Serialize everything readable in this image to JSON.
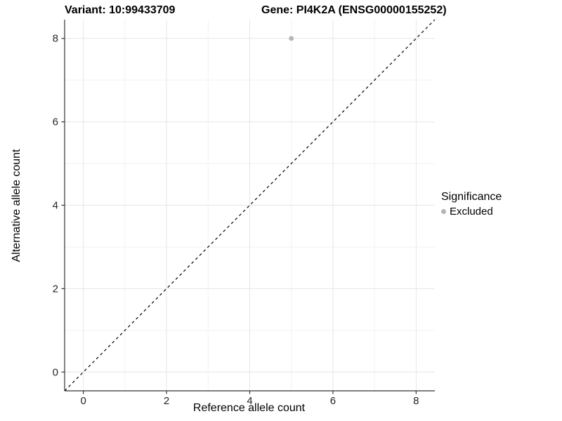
{
  "titles": {
    "variant": "Variant: 10:99433709",
    "gene": "Gene: PI4K2A (ENSG00000155252)"
  },
  "chart_data": {
    "type": "scatter",
    "xlabel": "Reference allele count",
    "ylabel": "Alternative allele count",
    "xlim": [
      -0.45,
      8.45
    ],
    "ylim": [
      -0.45,
      8.45
    ],
    "xticks": [
      0,
      2,
      4,
      6,
      8
    ],
    "yticks": [
      0,
      2,
      4,
      6,
      8
    ],
    "xticks_minor": [
      1,
      3,
      5,
      7
    ],
    "yticks_minor": [
      1,
      3,
      5,
      7
    ],
    "grid": true,
    "identity_line": {
      "style": "dashed",
      "color": "#000000"
    },
    "series": [
      {
        "name": "Excluded",
        "color": "#b4b4b4",
        "points": [
          {
            "x": 5,
            "y": 8
          }
        ]
      }
    ],
    "legend": {
      "title": "Significance",
      "position": "right",
      "entries": [
        {
          "label": "Excluded",
          "color": "#b4b4b4"
        }
      ]
    }
  },
  "colors": {
    "background": "#ffffff",
    "grid_major": "#e6e6e6",
    "grid_minor": "#f2f2f2",
    "axis_line": "#333333",
    "tick_label": "#262626",
    "point": "#b4b4b4"
  }
}
